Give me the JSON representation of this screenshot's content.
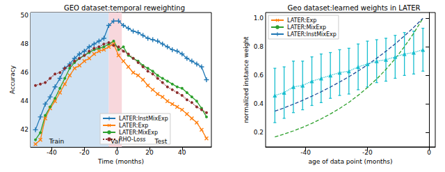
{
  "chart_data": [
    {
      "type": "line",
      "title": "GEO dataset:temporal reweighting",
      "x_label": "Time (months)",
      "y_label": "Accuracy",
      "xlim": [
        -53,
        58
      ],
      "xticks": [
        -40,
        -20,
        0,
        20,
        40
      ],
      "ylim": [
        40.8,
        50.2
      ],
      "yticks": [
        42,
        44,
        46,
        48,
        50
      ],
      "legend": "lower center",
      "regions": [
        {
          "start": -53,
          "end": -5,
          "color": "#cfe2f3"
        },
        {
          "start": -5,
          "end": 3,
          "color": "#f8d7dc"
        }
      ],
      "annotations": [
        {
          "text": "Train",
          "x": -37,
          "y": 41.2
        },
        {
          "text": "Val",
          "x": -1,
          "y": 41.2
        },
        {
          "text": "Test",
          "x": 27,
          "y": 41.2
        }
      ],
      "x": [
        -50,
        -47,
        -44,
        -41,
        -38,
        -35,
        -32,
        -29,
        -26,
        -23,
        -20,
        -17,
        -14,
        -11,
        -8,
        -5,
        -2,
        1,
        4,
        7,
        10,
        13,
        16,
        19,
        22,
        25,
        28,
        31,
        34,
        37,
        40,
        43,
        46,
        49,
        52,
        55
      ],
      "series": [
        {
          "name": "LATER:InstMixExp",
          "color": "#1f77b4",
          "marker": "plus",
          "line_style": "solid",
          "values": [
            42.0,
            42.9,
            43.8,
            44.3,
            45.0,
            45.6,
            46.3,
            46.6,
            47.0,
            47.3,
            47.5,
            47.8,
            48.0,
            48.2,
            48.4,
            49.3,
            49.6,
            49.6,
            49.3,
            49.1,
            48.9,
            48.8,
            48.6,
            48.4,
            48.3,
            48.2,
            48.0,
            47.8,
            47.6,
            47.5,
            47.3,
            47.0,
            46.8,
            46.6,
            46.4,
            45.5
          ]
        },
        {
          "name": "LATER:Exp",
          "color": "#ff7f0e",
          "marker": "x",
          "line_style": "solid",
          "values": [
            41.0,
            41.3,
            42.8,
            43.5,
            44.0,
            44.6,
            45.2,
            45.8,
            46.3,
            46.5,
            46.8,
            47.0,
            47.3,
            47.5,
            47.6,
            47.8,
            48.0,
            47.2,
            46.8,
            46.4,
            46.0,
            45.8,
            45.5,
            45.1,
            44.8,
            44.5,
            44.3,
            44.0,
            43.8,
            43.6,
            43.4,
            43.1,
            42.8,
            42.5,
            42.0,
            41.4
          ]
        },
        {
          "name": "LATER:MixExp",
          "color": "#2ca02c",
          "marker": "circle",
          "line_style": "solid",
          "values": [
            41.3,
            41.8,
            43.0,
            43.6,
            44.2,
            44.9,
            45.6,
            46.3,
            46.7,
            47.0,
            47.2,
            47.4,
            47.6,
            47.7,
            47.8,
            48.0,
            48.2,
            47.6,
            47.8,
            47.2,
            47.0,
            46.8,
            46.5,
            46.3,
            46.1,
            45.8,
            45.6,
            45.4,
            45.2,
            45.0,
            44.9,
            44.6,
            44.3,
            44.0,
            43.5,
            42.9
          ]
        },
        {
          "name": "RHO-Loss",
          "color": "#8c2d2d",
          "marker": "circle",
          "line_style": "dotted",
          "values": [
            45.1,
            45.2,
            45.3,
            45.6,
            45.9,
            46.0,
            46.3,
            46.5,
            46.8,
            47.0,
            47.2,
            47.5,
            47.7,
            47.8,
            48.0,
            48.1,
            47.9,
            47.8,
            47.5,
            47.3,
            47.0,
            46.7,
            46.4,
            46.1,
            45.9,
            45.6,
            45.3,
            45.0,
            44.8,
            44.6,
            44.4,
            44.1,
            43.9,
            43.6,
            43.4,
            43.2
          ]
        }
      ]
    },
    {
      "type": "line",
      "title": "Geo dataset:learned weights in LATER",
      "x_label": "age of data point (months)",
      "y_label": "normalized instance weight",
      "xlim": [
        -53,
        2
      ],
      "xticks": [
        -40,
        -20,
        0
      ],
      "ylim": [
        0.1,
        1.04
      ],
      "yticks": [
        {
          "value": 0.2,
          "label": "0.2"
        },
        {
          "value": 0.4,
          "label": "0.4"
        },
        {
          "value": 0.6,
          "label": "0.6"
        },
        {
          "value": 0.8,
          "label": "0.8"
        },
        {
          "value": 1.0,
          "label": "1.0"
        }
      ],
      "legend": "upper left",
      "x": [
        -50,
        -47,
        -44,
        -41,
        -38,
        -35,
        -32,
        -29,
        -26,
        -23,
        -20,
        -17,
        -14,
        -11,
        -8,
        -5,
        -2
      ],
      "series": [
        {
          "name": "LATER:Exp",
          "color": "#2ca02c",
          "marker": "none",
          "line_style": "dashed",
          "values": [
            0.17,
            0.19,
            0.212,
            0.237,
            0.265,
            0.296,
            0.331,
            0.369,
            0.412,
            0.461,
            0.515,
            0.575,
            0.642,
            0.717,
            0.801,
            0.895,
            1.0
          ]
        },
        {
          "name": "LATER:MixExp",
          "color": "#1f4e99",
          "marker": "none",
          "line_style": "dashed",
          "values": [
            0.35,
            0.373,
            0.399,
            0.426,
            0.455,
            0.486,
            0.519,
            0.554,
            0.591,
            0.631,
            0.674,
            0.72,
            0.769,
            0.821,
            0.877,
            0.936,
            1.0
          ]
        },
        {
          "name": "LATER:InstMixExp",
          "color": "#17becf",
          "marker": "triangle",
          "line_style": "dotted",
          "values": [
            0.46,
            0.48,
            0.52,
            0.53,
            0.56,
            0.58,
            0.6,
            0.62,
            0.63,
            0.66,
            0.68,
            0.7,
            0.71,
            0.73,
            0.75,
            0.76,
            0.78
          ],
          "errors": [
            0.19,
            0.18,
            0.18,
            0.17,
            0.17,
            0.17,
            0.16,
            0.16,
            0.16,
            0.16,
            0.16,
            0.15,
            0.15,
            0.15,
            0.15,
            0.15,
            0.15
          ]
        }
      ]
    }
  ]
}
